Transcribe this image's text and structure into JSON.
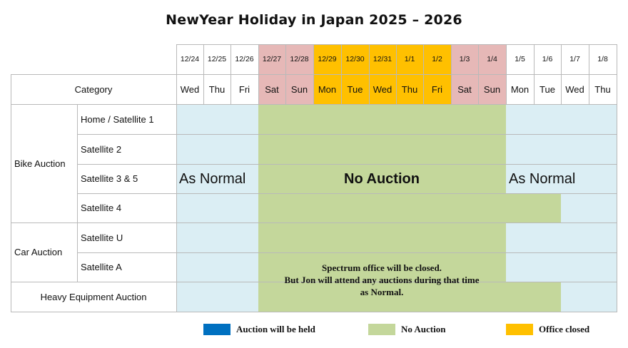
{
  "title": "NewYear Holiday in Japan 2025 – 2026",
  "header": {
    "category_label": "Category",
    "dates": [
      "12/24",
      "12/25",
      "12/26",
      "12/27",
      "12/28",
      "12/29",
      "12/30",
      "12/31",
      "1/1",
      "1/2",
      "1/3",
      "1/4",
      "1/5",
      "1/6",
      "1/7",
      "1/8"
    ],
    "days": [
      "Wed",
      "Thu",
      "Fri",
      "Sat",
      "Sun",
      "Mon",
      "Tue",
      "Wed",
      "Thu",
      "Fri",
      "Sat",
      "Sun",
      "Mon",
      "Tue",
      "Wed",
      "Thu"
    ],
    "day_status": [
      "normal",
      "normal",
      "normal",
      "weekend-closed",
      "weekend-closed",
      "office-closed",
      "office-closed",
      "office-closed",
      "office-closed",
      "office-closed",
      "weekend-closed",
      "weekend-closed",
      "normal",
      "normal",
      "normal",
      "normal"
    ]
  },
  "groups": [
    {
      "label": "Bike Auction",
      "rows": [
        "Home / Satellite 1",
        "Satellite 2",
        "Satellite 3 & 5",
        "Satellite 4"
      ]
    },
    {
      "label": "Car Auction",
      "rows": [
        "Satellite U",
        "Satellite A"
      ]
    },
    {
      "label": "Heavy Equipment Auction",
      "rows": []
    }
  ],
  "rows_status": [
    {
      "row": "Home / Satellite 1",
      "no_auction_days": 9
    },
    {
      "row": "Satellite 2",
      "no_auction_days": 9
    },
    {
      "row": "Satellite 3 & 5",
      "no_auction_days": 9
    },
    {
      "row": "Satellite 4",
      "no_auction_days": 11
    },
    {
      "row": "Satellite U",
      "no_auction_days": 9
    },
    {
      "row": "Satellite A",
      "no_auction_days": 9
    },
    {
      "row": "Heavy Equipment Auction",
      "no_auction_days": 11
    }
  ],
  "labels": {
    "as_normal_left": "As Normal",
    "no_auction": "No Auction",
    "as_normal_right": "As Normal"
  },
  "note": {
    "line1": "Spectrum office will be closed.",
    "line2": "But Jon will attend any auctions during that time",
    "line3": "as Normal."
  },
  "legend": [
    {
      "label": "Auction will be held",
      "color": "#0070c0"
    },
    {
      "label": "No Auction",
      "color": "#c4d79b"
    },
    {
      "label": "Office closed",
      "color": "#ffc000"
    }
  ],
  "colors": {
    "held_light": "#dbeef4",
    "no_auction": "#c4d79b",
    "office_closed": "#ffc000",
    "weekend_closed": "#e6b8b7",
    "grid": "#b9b9b9"
  }
}
